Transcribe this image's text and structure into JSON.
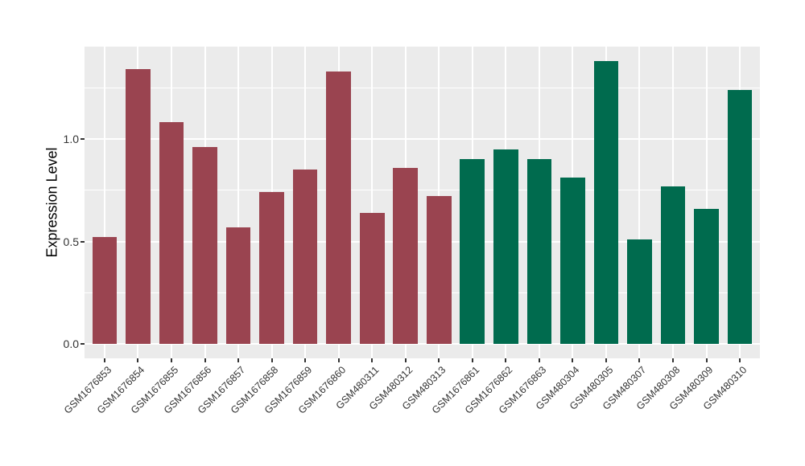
{
  "chart_data": {
    "type": "bar",
    "title": "",
    "xlabel": "",
    "ylabel": "Expression Level",
    "categories": [
      "GSM1676853",
      "GSM1676854",
      "GSM1676855",
      "GSM1676856",
      "GSM1676857",
      "GSM1676858",
      "GSM1676859",
      "GSM1676860",
      "GSM480311",
      "GSM480312",
      "GSM480313",
      "GSM1676861",
      "GSM1676862",
      "GSM1676863",
      "GSM480304",
      "GSM480305",
      "GSM480307",
      "GSM480308",
      "GSM480309",
      "GSM480310"
    ],
    "values": [
      0.52,
      1.34,
      1.08,
      0.96,
      0.57,
      0.74,
      0.85,
      1.33,
      0.64,
      0.86,
      0.72,
      0.9,
      0.95,
      0.9,
      0.81,
      1.38,
      0.51,
      0.77,
      0.66,
      1.24
    ],
    "group_of_bar": [
      0,
      0,
      0,
      0,
      0,
      0,
      0,
      0,
      0,
      0,
      0,
      1,
      1,
      1,
      1,
      1,
      1,
      1,
      1,
      1
    ],
    "group_colors": [
      "#9a4450",
      "#006b4e"
    ],
    "yticks": {
      "values": [
        0.0,
        0.5,
        1.0
      ],
      "labels": [
        "0.0",
        "0.5",
        "1.0"
      ]
    },
    "minor_yticks": [
      0.25,
      0.75,
      1.25
    ],
    "ylim": [
      -0.07,
      1.45
    ],
    "grid": true,
    "legend": false,
    "colors": {
      "figure_bg": "#ffffff",
      "panel_bg": "#ebebeb",
      "grid": "#ffffff",
      "tick": "#333333",
      "axis_text": "#333333",
      "axis_title": "#000000"
    }
  }
}
